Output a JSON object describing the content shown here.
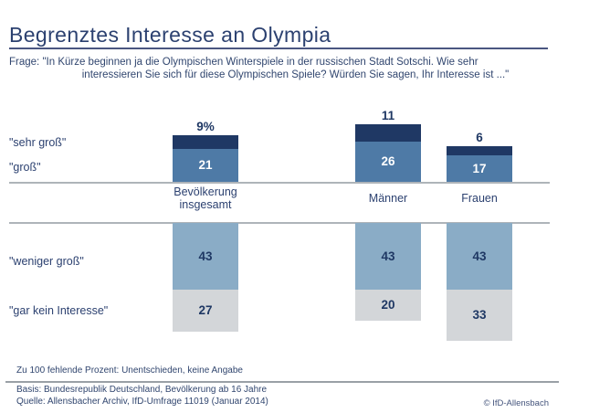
{
  "slide": {
    "title": "Begrenztes Interesse an Olympia",
    "copyright": "© IfD-Allensbach"
  },
  "question": {
    "label": "Frage:",
    "line1": "\"In Kürze beginnen ja die Olympischen Winterspiele in der russischen Stadt Sotschi. Wie sehr",
    "line2": "interessieren Sie sich für diese Olympischen Spiele? Würden Sie sagen, Ihr Interesse ist ...\""
  },
  "footer": {
    "note": "Zu 100 fehlende Prozent: Unentschieden, keine Angabe",
    "basis": "Basis: Bundesrepublik Deutschland, Bevölkerung ab 16 Jahre",
    "quelle": "Quelle: Allensbacher Archiv, IfD-Umfrage 11019 (Januar 2014)"
  },
  "chart_data": {
    "type": "bar",
    "stacked": true,
    "orientation": "diverging-vertical",
    "unit": "percent",
    "categories": [
      "Bevölkerung insgesamt",
      "Männer",
      "Frauen"
    ],
    "series": [
      {
        "name": "\"sehr groß\"",
        "values": [
          9,
          11,
          6
        ],
        "value_labels": [
          "9%",
          "11",
          "6"
        ],
        "color": "#1f3864",
        "label_position": "above",
        "label_color": "#1f3864"
      },
      {
        "name": "\"groß\"",
        "values": [
          21,
          26,
          17
        ],
        "color": "#4e7aa6",
        "label_position": "inside",
        "label_color": "#ffffff"
      },
      {
        "name": "\"weniger groß\"",
        "values": [
          43,
          43,
          43
        ],
        "color": "#8aacc6",
        "label_position": "inside",
        "label_color": "#1f3864"
      },
      {
        "name": "\"gar kein Interesse\"",
        "values": [
          27,
          20,
          33
        ],
        "color": "#d3d6d9",
        "label_position": "inside",
        "label_color": "#1f3864"
      }
    ],
    "layout_hints": {
      "top_axis_series": [
        "\"sehr groß\"",
        "\"groß\""
      ],
      "bottom_axis_series": [
        "\"weniger groß\"",
        "\"gar kein Interesse\""
      ],
      "gridlines": false,
      "legend": "row labels at left"
    }
  },
  "colors": {
    "navy_dark": "#1f3864",
    "steel_blue": "#4e7aa6",
    "light_blue": "#8aacc6",
    "light_gray": "#d3d6d9",
    "text_navy": "#2c4170",
    "axis_line_gray": "#aeb4b9"
  }
}
